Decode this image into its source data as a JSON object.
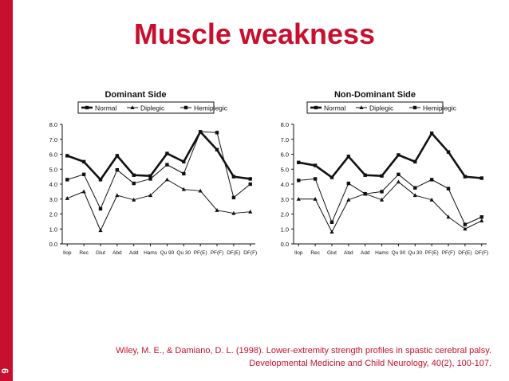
{
  "slide": {
    "title": "Muscle weakness",
    "page_number": "6",
    "citation_line1": "Wiley, M. E., & Damiano, D. L. (1998). Lower-extremity strength profiles in spastic cerebral palsy.",
    "citation_line2": "Developmental Medicine and Child Neurology, 40(2), 100-107."
  },
  "colors": {
    "accent": "#c8102e",
    "ink": "#111111"
  },
  "chart_data": [
    {
      "type": "line",
      "title": "Dominant Side",
      "categories": [
        "Ilop",
        "Rec",
        "Glut",
        "Abd",
        "Add",
        "Hams",
        "Qu 90",
        "Qu 30",
        "PF(E)",
        "PF(F)",
        "DF(E)",
        "DF(F)"
      ],
      "ylim": [
        0,
        8
      ],
      "yticks": [
        "0.0",
        "1.0",
        "2.0",
        "3.0",
        "4.0",
        "5.0",
        "6.0",
        "7.0",
        "8.0"
      ],
      "legend_position": "top",
      "series": [
        {
          "name": "Normal",
          "values": [
            5.9,
            5.5,
            4.3,
            5.9,
            4.6,
            4.55,
            6.05,
            5.5,
            7.5,
            6.3,
            4.5,
            4.35
          ]
        },
        {
          "name": "Diplegic",
          "values": [
            3.05,
            3.5,
            0.9,
            3.25,
            2.95,
            3.25,
            4.3,
            3.65,
            3.55,
            2.25,
            2.05,
            2.15
          ]
        },
        {
          "name": "Hemiplegic",
          "values": [
            4.3,
            4.65,
            2.35,
            4.95,
            4.05,
            4.35,
            5.3,
            4.7,
            7.5,
            7.45,
            3.1,
            4.0
          ]
        }
      ]
    },
    {
      "type": "line",
      "title": "Non-Dominant Side",
      "categories": [
        "Ilop",
        "Rec",
        "Glut",
        "Abd",
        "Add",
        "Hams",
        "Qu 90",
        "Qu 30",
        "PF(E)",
        "PF(F)",
        "DF(E)",
        "DF(F)"
      ],
      "ylim": [
        0,
        8
      ],
      "yticks": [
        "0.0",
        "1.0",
        "2.0",
        "3.0",
        "4.0",
        "5.0",
        "6.0",
        "7.0",
        "8.0"
      ],
      "legend_position": "top",
      "series": [
        {
          "name": "Normal",
          "values": [
            5.45,
            5.25,
            4.45,
            5.85,
            4.6,
            4.55,
            5.95,
            5.5,
            7.4,
            6.15,
            4.5,
            4.4
          ]
        },
        {
          "name": "Diplegic",
          "values": [
            3.0,
            3.0,
            0.8,
            2.95,
            3.35,
            2.95,
            4.15,
            3.25,
            2.95,
            1.8,
            1.0,
            1.55
          ]
        },
        {
          "name": "Hemiplegic",
          "values": [
            4.25,
            4.35,
            1.45,
            4.05,
            3.35,
            3.5,
            4.65,
            3.75,
            4.3,
            3.7,
            1.3,
            1.8
          ]
        }
      ]
    }
  ]
}
